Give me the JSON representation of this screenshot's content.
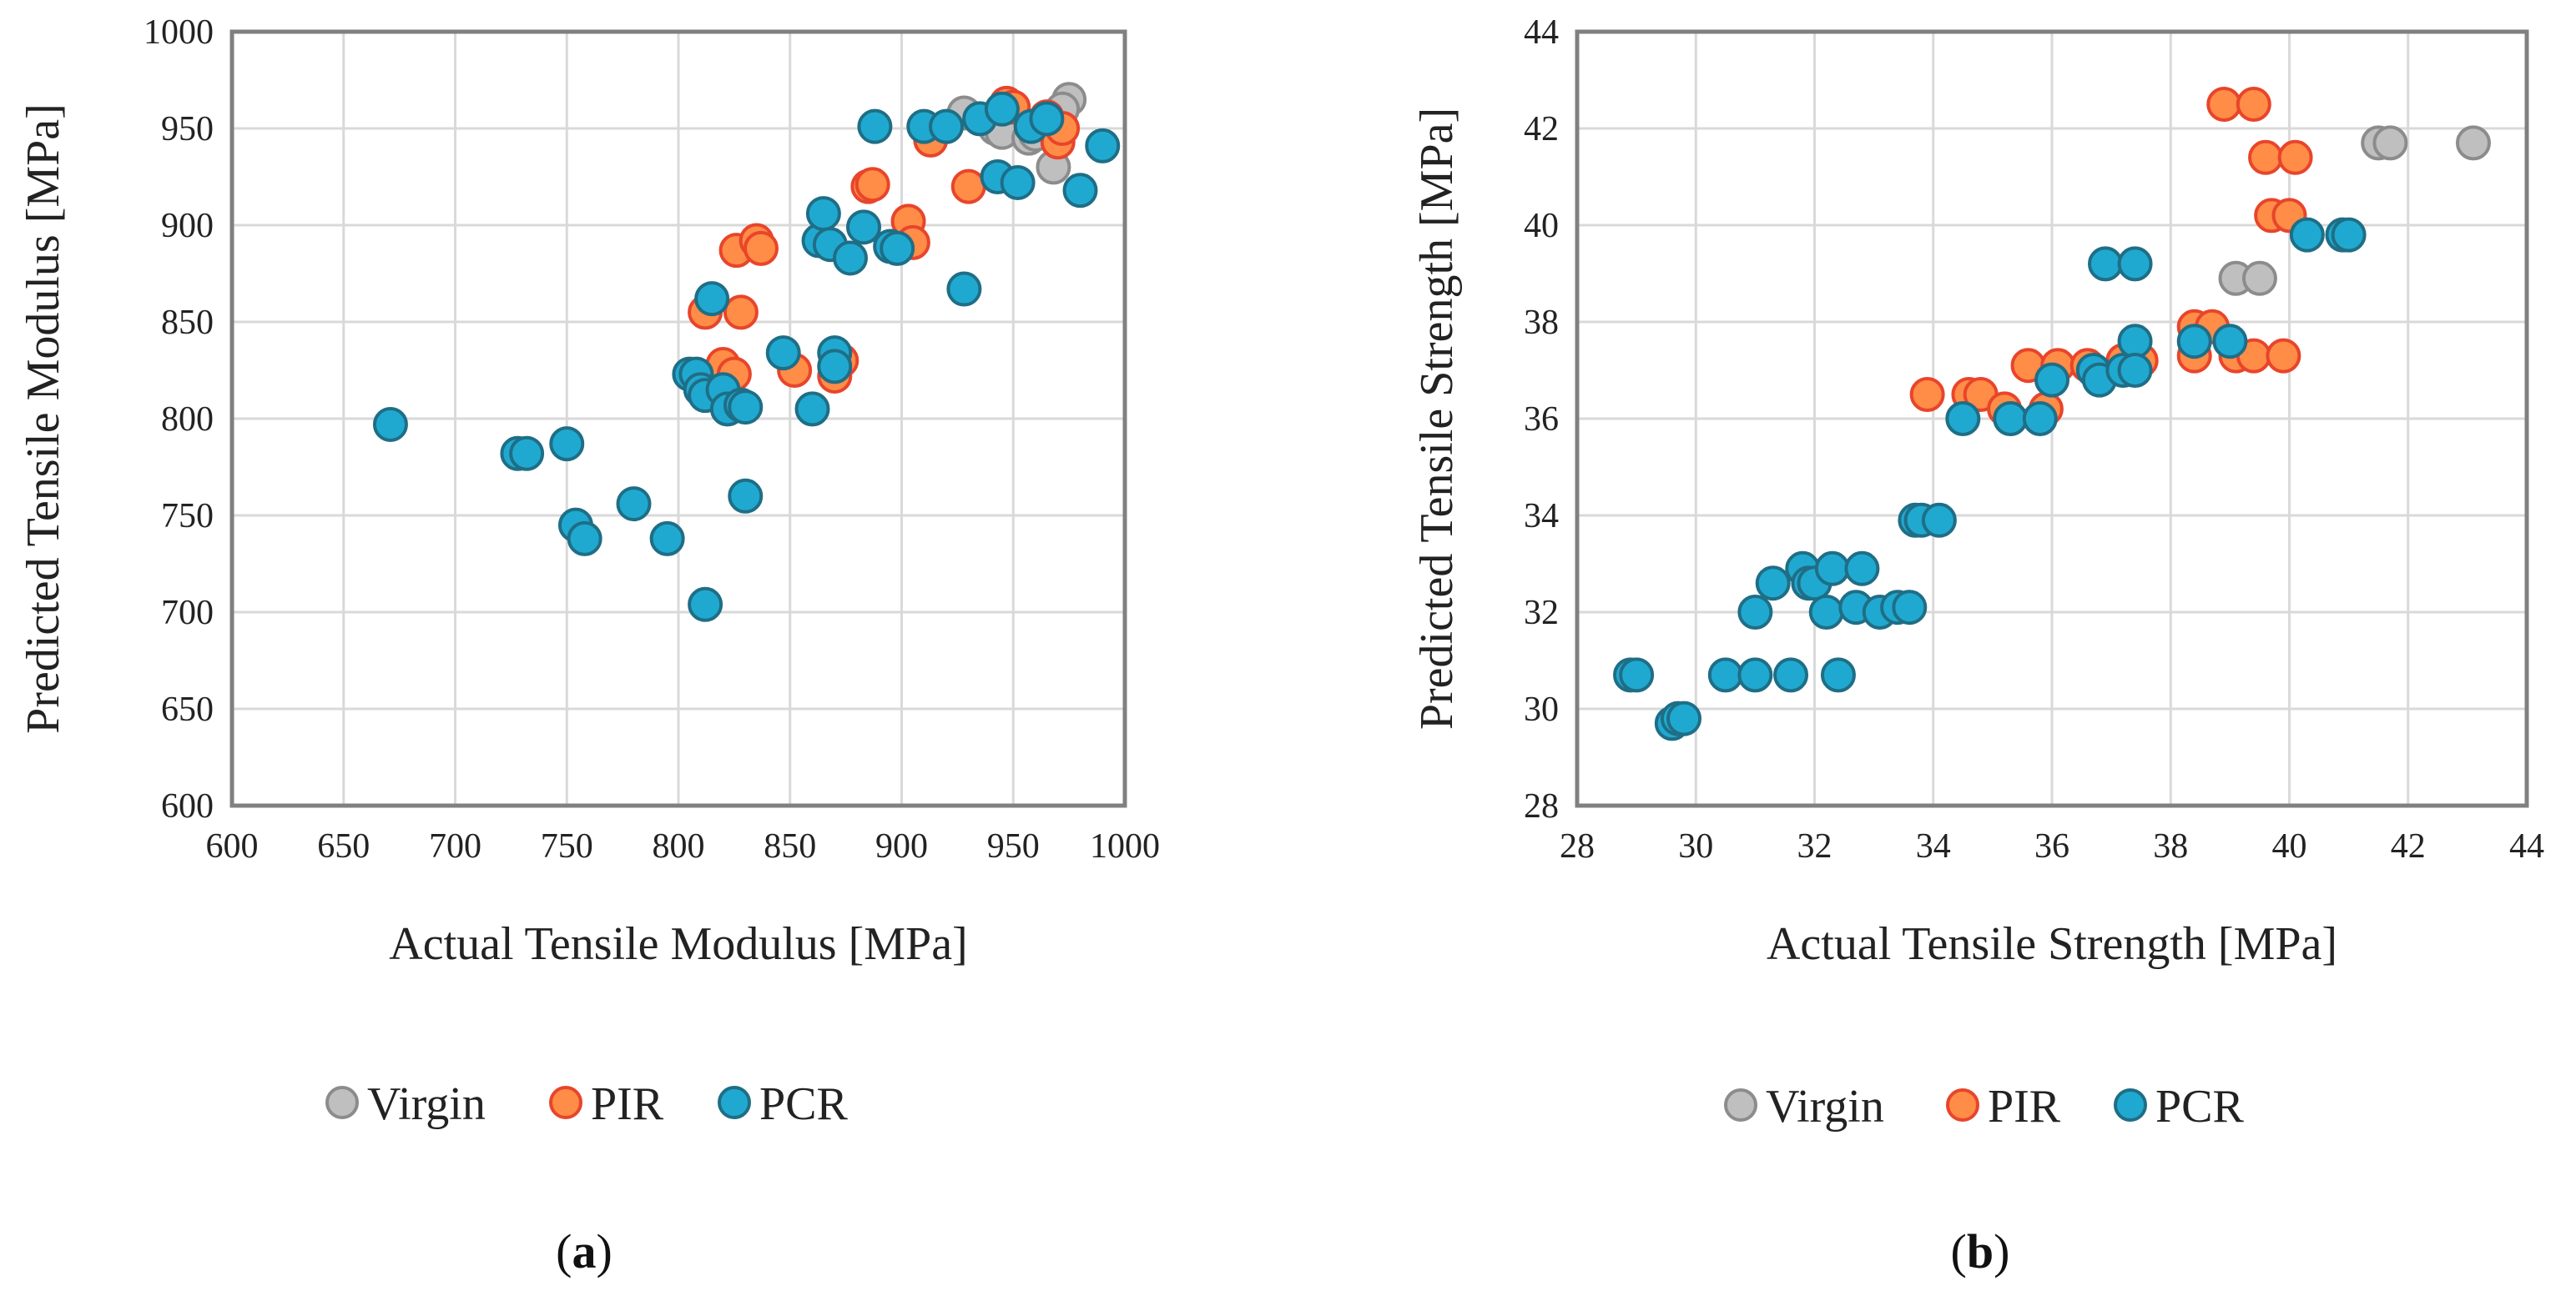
{
  "colors": {
    "virgin_fill": "#BFBFBF",
    "virgin_stroke": "#8C8C8C",
    "pir_fill": "#FF8C47",
    "pir_stroke": "#E8452B",
    "pcr_fill": "#20A9D0",
    "pcr_stroke": "#1F6E86",
    "grid": "#D9D9D9",
    "frame": "#808080"
  },
  "chart_data": [
    {
      "panel": "a",
      "panel_label": {
        "open": "(",
        "letter": "a",
        "close": ")"
      },
      "type": "scatter",
      "xlabel": "Actual Tensile Modulus [MPa]",
      "ylabel": "Predicted Tensile Modulus [MPa]",
      "xlim": [
        600,
        1000
      ],
      "ylim": [
        600,
        1000
      ],
      "xticks": [
        600,
        650,
        700,
        750,
        800,
        850,
        900,
        950,
        1000
      ],
      "yticks": [
        600,
        650,
        700,
        750,
        800,
        850,
        900,
        950,
        1000
      ],
      "legend_position": "bottom",
      "series": [
        {
          "name": "Virgin",
          "key": "virgin",
          "points": [
            [
              928,
              958
            ],
            [
              940,
              955
            ],
            [
              942,
              950
            ],
            [
              945,
              948
            ],
            [
              957,
              945
            ],
            [
              960,
              947
            ],
            [
              968,
              930
            ],
            [
              975,
              965
            ],
            [
              972,
              960
            ]
          ]
        },
        {
          "name": "PIR",
          "key": "pir",
          "points": [
            [
              812,
              855
            ],
            [
              826,
              887
            ],
            [
              835,
              892
            ],
            [
              837,
              888
            ],
            [
              828,
              855
            ],
            [
              820,
              828
            ],
            [
              825,
              823
            ],
            [
              852,
              825
            ],
            [
              870,
              822
            ],
            [
              873,
              830
            ],
            [
              885,
              920
            ],
            [
              887,
              921
            ],
            [
              903,
              902
            ],
            [
              905,
              891
            ],
            [
              930,
              920
            ],
            [
              913,
              944
            ],
            [
              947,
              963
            ],
            [
              950,
              961
            ],
            [
              965,
              956
            ],
            [
              970,
              943
            ],
            [
              972,
              950
            ]
          ]
        },
        {
          "name": "PCR",
          "key": "pcr",
          "points": [
            [
              671,
              797
            ],
            [
              728,
              782
            ],
            [
              732,
              782
            ],
            [
              750,
              787
            ],
            [
              754,
              745
            ],
            [
              758,
              738
            ],
            [
              780,
              756
            ],
            [
              795,
              738
            ],
            [
              805,
              823
            ],
            [
              808,
              823
            ],
            [
              810,
              815
            ],
            [
              812,
              812
            ],
            [
              815,
              862
            ],
            [
              820,
              815
            ],
            [
              822,
              805
            ],
            [
              828,
              807
            ],
            [
              830,
              806
            ],
            [
              830,
              760
            ],
            [
              812,
              704
            ],
            [
              847,
              834
            ],
            [
              860,
              805
            ],
            [
              863,
              892
            ],
            [
              865,
              906
            ],
            [
              868,
              890
            ],
            [
              870,
              834
            ],
            [
              870,
              827
            ],
            [
              877,
              883
            ],
            [
              883,
              899
            ],
            [
              888,
              951
            ],
            [
              895,
              889
            ],
            [
              898,
              888
            ],
            [
              910,
              951
            ],
            [
              920,
              951
            ],
            [
              928,
              867
            ],
            [
              935,
              955
            ],
            [
              943,
              925
            ],
            [
              945,
              960
            ],
            [
              952,
              922
            ],
            [
              958,
              951
            ],
            [
              965,
              955
            ],
            [
              980,
              918
            ],
            [
              990,
              941
            ]
          ]
        }
      ]
    },
    {
      "panel": "b",
      "panel_label": {
        "open": "(",
        "letter": "b",
        "close": ")"
      },
      "type": "scatter",
      "xlabel": "Actual Tensile Strength [MPa]",
      "ylabel": "Predicted Tensile Strength [MPa]",
      "xlim": [
        28,
        44
      ],
      "ylim": [
        28,
        44
      ],
      "xticks": [
        28,
        30,
        32,
        34,
        36,
        38,
        40,
        42,
        44
      ],
      "yticks": [
        28,
        30,
        32,
        34,
        36,
        38,
        40,
        42,
        44
      ],
      "legend_position": "bottom",
      "series": [
        {
          "name": "Virgin",
          "key": "virgin",
          "points": [
            [
              39.1,
              38.9
            ],
            [
              39.5,
              38.9
            ],
            [
              41.5,
              41.7
            ],
            [
              41.7,
              41.7
            ],
            [
              43.1,
              41.7
            ]
          ]
        },
        {
          "name": "PIR",
          "key": "pir",
          "points": [
            [
              33.9,
              36.5
            ],
            [
              34.6,
              36.5
            ],
            [
              34.8,
              36.5
            ],
            [
              35.2,
              36.2
            ],
            [
              35.6,
              37.1
            ],
            [
              35.9,
              36.2
            ],
            [
              36.1,
              37.1
            ],
            [
              36.6,
              37.1
            ],
            [
              37.2,
              37.2
            ],
            [
              37.5,
              37.2
            ],
            [
              38.4,
              37.9
            ],
            [
              38.4,
              37.3
            ],
            [
              38.7,
              37.9
            ],
            [
              38.9,
              42.5
            ],
            [
              39.1,
              37.3
            ],
            [
              39.4,
              42.5
            ],
            [
              39.4,
              37.3
            ],
            [
              39.6,
              41.4
            ],
            [
              39.7,
              40.2
            ],
            [
              39.9,
              37.3
            ],
            [
              40.0,
              40.2
            ],
            [
              40.1,
              41.4
            ]
          ]
        },
        {
          "name": "PCR",
          "key": "pcr",
          "points": [
            [
              28.9,
              30.7
            ],
            [
              29.0,
              30.7
            ],
            [
              29.6,
              29.7
            ],
            [
              29.7,
              29.8
            ],
            [
              29.8,
              29.8
            ],
            [
              30.5,
              30.7
            ],
            [
              31.0,
              30.7
            ],
            [
              31.0,
              32.0
            ],
            [
              31.3,
              32.6
            ],
            [
              31.6,
              30.7
            ],
            [
              31.8,
              32.9
            ],
            [
              31.9,
              32.6
            ],
            [
              32.0,
              32.6
            ],
            [
              32.2,
              32.0
            ],
            [
              32.3,
              32.9
            ],
            [
              32.4,
              30.7
            ],
            [
              32.7,
              32.1
            ],
            [
              32.8,
              32.9
            ],
            [
              33.1,
              32.0
            ],
            [
              33.4,
              32.1
            ],
            [
              33.6,
              32.1
            ],
            [
              33.7,
              33.9
            ],
            [
              33.8,
              33.9
            ],
            [
              34.1,
              33.9
            ],
            [
              34.5,
              36.0
            ],
            [
              35.3,
              36.0
            ],
            [
              35.8,
              36.0
            ],
            [
              36.0,
              36.8
            ],
            [
              36.7,
              37.0
            ],
            [
              36.8,
              36.8
            ],
            [
              36.9,
              39.2
            ],
            [
              37.2,
              37.0
            ],
            [
              37.4,
              37.6
            ],
            [
              37.4,
              37.0
            ],
            [
              37.4,
              39.2
            ],
            [
              38.4,
              37.6
            ],
            [
              39.0,
              37.6
            ],
            [
              40.3,
              39.8
            ],
            [
              40.9,
              39.8
            ],
            [
              41.0,
              39.8
            ]
          ]
        }
      ]
    }
  ]
}
